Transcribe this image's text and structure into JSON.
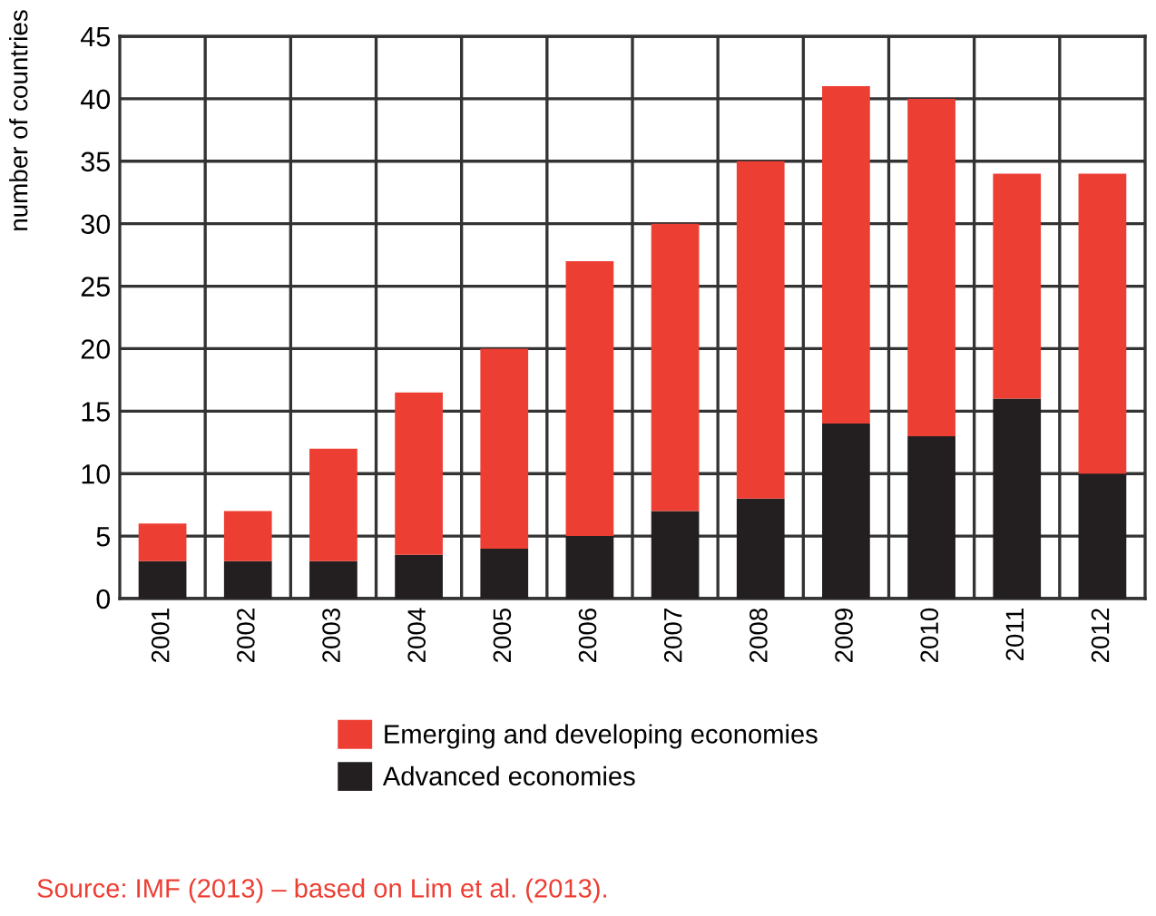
{
  "chart_data": {
    "type": "bar",
    "stacked": true,
    "ylabel": "number of countries",
    "categories": [
      "2001",
      "2002",
      "2003",
      "2004",
      "2005",
      "2006",
      "2007",
      "2008",
      "2009",
      "2010",
      "2011",
      "2012"
    ],
    "series": [
      {
        "name": "Advanced economies",
        "color": "#231f20",
        "values": [
          3,
          3,
          3,
          3.5,
          4,
          5,
          7,
          8,
          14,
          13,
          16,
          10
        ]
      },
      {
        "name": "Emerging and developing economies",
        "color": "#ed3e33",
        "values": [
          3,
          4,
          9,
          13,
          16,
          22,
          23,
          27,
          27,
          27,
          18,
          24
        ]
      }
    ],
    "ylim": [
      0,
      45
    ],
    "yticks": [
      0,
      5,
      10,
      15,
      20,
      25,
      30,
      35,
      40,
      45
    ],
    "grid": true,
    "legend": "bottom",
    "annotations": [
      "Source: IMF (2013) – based on Lim et al. (2013)."
    ]
  }
}
